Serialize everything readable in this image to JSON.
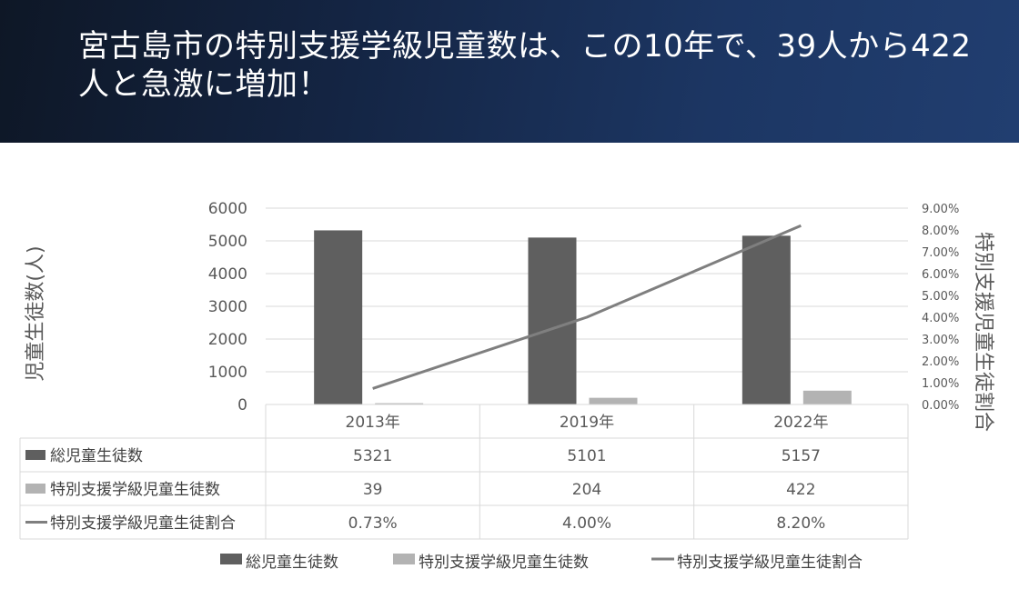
{
  "banner": {
    "title": "宮古島市の特別支援学級児童数は、この10年で、39人から422人と急激に増加！"
  },
  "colors": {
    "banner_start": "#0e1726",
    "banner_end": "#213e70",
    "series_total": "#5f5f5f",
    "series_special": "#b3b3b3",
    "series_ratio": "#7f7f7f"
  },
  "chart_data": {
    "type": "bar",
    "categories": [
      "2013年",
      "2019年",
      "2022年"
    ],
    "series": [
      {
        "name": "総児童生徒数",
        "type": "bar",
        "axis": "left",
        "values": [
          5321,
          5101,
          5157
        ],
        "table_labels": [
          "5321",
          "5101",
          "5157"
        ]
      },
      {
        "name": "特別支援学級児童生徒数",
        "type": "bar",
        "axis": "left",
        "values": [
          39,
          204,
          422
        ],
        "table_labels": [
          "39",
          "204",
          "422"
        ]
      },
      {
        "name": "特別支援学級児童生徒割合",
        "type": "line",
        "axis": "right",
        "values": [
          0.73,
          4.0,
          8.2
        ],
        "table_labels": [
          "0.73%",
          "4.00%",
          "8.20%"
        ]
      }
    ],
    "ylabel": "児童生徒数(人)",
    "y2label": "特別支援児童生徒割合",
    "ylim": [
      0,
      6000
    ],
    "y2lim": [
      0,
      9
    ],
    "yticks": [
      "0",
      "1000",
      "2000",
      "3000",
      "4000",
      "5000",
      "6000"
    ],
    "y2ticks": [
      "0.00%",
      "1.00%",
      "2.00%",
      "3.00%",
      "4.00%",
      "5.00%",
      "6.00%",
      "7.00%",
      "8.00%",
      "9.00%"
    ],
    "grid": true,
    "legend": "bottom",
    "data_table": true
  }
}
